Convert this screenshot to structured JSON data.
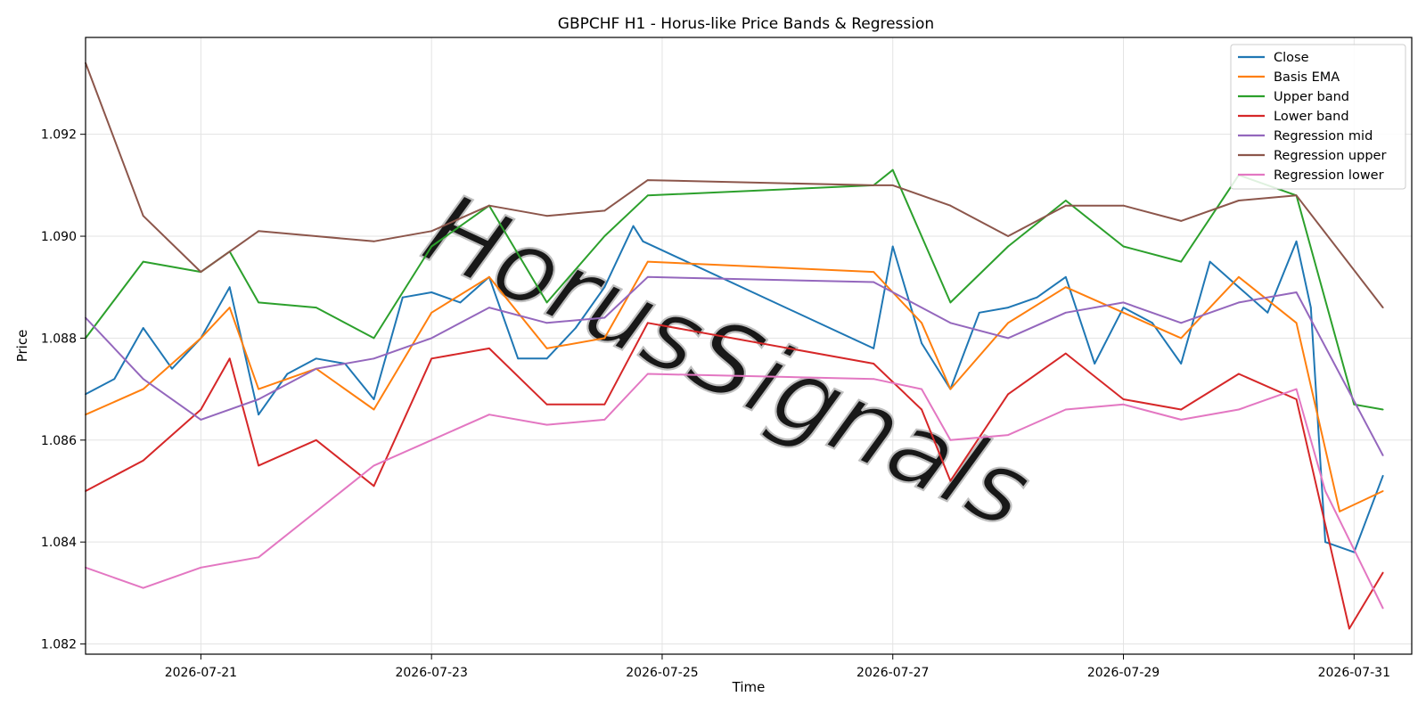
{
  "chart_data": {
    "type": "line",
    "title": "GBPCHF H1 - Horus-like Price Bands & Regression",
    "xlabel": "Time",
    "ylabel": "Price",
    "x_range": [
      "2026-07-20T00:00",
      "2026-07-31T12:00"
    ],
    "ylim": [
      1.0818,
      1.0939
    ],
    "xticks": [
      "2026-07-21",
      "2026-07-23",
      "2026-07-25",
      "2026-07-27",
      "2026-07-29",
      "2026-07-31"
    ],
    "yticks": [
      "1.082",
      "1.084",
      "1.086",
      "1.088",
      "1.090",
      "1.092"
    ],
    "grid": true,
    "legend_position": "top-right",
    "watermark": "HorusSignals",
    "series": [
      {
        "name": "Close",
        "color": "#1f77b4",
        "x": [
          "2026-07-20T00:00",
          "2026-07-20T06:00",
          "2026-07-20T12:00",
          "2026-07-20T18:00",
          "2026-07-21T00:00",
          "2026-07-21T06:00",
          "2026-07-21T12:00",
          "2026-07-21T18:00",
          "2026-07-22T00:00",
          "2026-07-22T06:00",
          "2026-07-22T12:00",
          "2026-07-22T18:00",
          "2026-07-23T00:00",
          "2026-07-23T06:00",
          "2026-07-23T12:00",
          "2026-07-23T18:00",
          "2026-07-24T00:00",
          "2026-07-24T06:00",
          "2026-07-24T12:00",
          "2026-07-24T18:00",
          "2026-07-24T20:00",
          "2026-07-26T20:00",
          "2026-07-27T00:00",
          "2026-07-27T06:00",
          "2026-07-27T12:00",
          "2026-07-27T18:00",
          "2026-07-28T00:00",
          "2026-07-28T06:00",
          "2026-07-28T12:00",
          "2026-07-28T18:00",
          "2026-07-29T00:00",
          "2026-07-29T06:00",
          "2026-07-29T12:00",
          "2026-07-29T18:00",
          "2026-07-30T00:00",
          "2026-07-30T06:00",
          "2026-07-30T12:00",
          "2026-07-30T15:00",
          "2026-07-30T18:00",
          "2026-07-31T00:00",
          "2026-07-31T06:00"
        ],
        "y": [
          1.0869,
          1.0872,
          1.0882,
          1.0874,
          1.088,
          1.089,
          1.0865,
          1.0873,
          1.0876,
          1.0875,
          1.0868,
          1.0888,
          1.0889,
          1.0887,
          1.0892,
          1.0876,
          1.0876,
          1.0882,
          1.089,
          1.0902,
          1.0899,
          1.0878,
          1.0898,
          1.0879,
          1.087,
          1.0885,
          1.0886,
          1.0888,
          1.0892,
          1.0875,
          1.0886,
          1.0883,
          1.0875,
          1.0895,
          1.089,
          1.0885,
          1.0899,
          1.0886,
          1.084,
          1.0838,
          1.0853
        ]
      },
      {
        "name": "Basis EMA",
        "color": "#ff7f0e",
        "x": [
          "2026-07-20T00:00",
          "2026-07-20T12:00",
          "2026-07-21T00:00",
          "2026-07-21T06:00",
          "2026-07-21T12:00",
          "2026-07-22T00:00",
          "2026-07-22T12:00",
          "2026-07-23T00:00",
          "2026-07-23T12:00",
          "2026-07-24T00:00",
          "2026-07-24T12:00",
          "2026-07-24T21:00",
          "2026-07-26T20:00",
          "2026-07-27T06:00",
          "2026-07-27T12:00",
          "2026-07-28T00:00",
          "2026-07-28T12:00",
          "2026-07-29T00:00",
          "2026-07-29T12:00",
          "2026-07-30T00:00",
          "2026-07-30T12:00",
          "2026-07-30T21:00",
          "2026-07-31T06:00"
        ],
        "y": [
          1.0865,
          1.087,
          1.088,
          1.0886,
          1.087,
          1.0874,
          1.0866,
          1.0885,
          1.0892,
          1.0878,
          1.088,
          1.0895,
          1.0893,
          1.0883,
          1.087,
          1.0883,
          1.089,
          1.0885,
          1.088,
          1.0892,
          1.0883,
          1.0846,
          1.085
        ]
      },
      {
        "name": "Upper band",
        "color": "#2ca02c",
        "x": [
          "2026-07-20T00:00",
          "2026-07-20T12:00",
          "2026-07-21T00:00",
          "2026-07-21T06:00",
          "2026-07-21T12:00",
          "2026-07-22T00:00",
          "2026-07-22T12:00",
          "2026-07-23T00:00",
          "2026-07-23T12:00",
          "2026-07-24T00:00",
          "2026-07-24T12:00",
          "2026-07-24T21:00",
          "2026-07-26T20:00",
          "2026-07-27T00:00",
          "2026-07-27T12:00",
          "2026-07-28T00:00",
          "2026-07-28T12:00",
          "2026-07-29T00:00",
          "2026-07-29T12:00",
          "2026-07-30T00:00",
          "2026-07-30T12:00",
          "2026-07-31T00:00",
          "2026-07-31T06:00"
        ],
        "y": [
          1.088,
          1.0895,
          1.0893,
          1.0897,
          1.0887,
          1.0886,
          1.088,
          1.0898,
          1.0906,
          1.0887,
          1.09,
          1.0908,
          1.091,
          1.0913,
          1.0887,
          1.0898,
          1.0907,
          1.0898,
          1.0895,
          1.0912,
          1.0908,
          1.0867,
          1.0866
        ]
      },
      {
        "name": "Lower band",
        "color": "#d62728",
        "x": [
          "2026-07-20T00:00",
          "2026-07-20T12:00",
          "2026-07-21T00:00",
          "2026-07-21T06:00",
          "2026-07-21T12:00",
          "2026-07-22T00:00",
          "2026-07-22T12:00",
          "2026-07-23T00:00",
          "2026-07-23T12:00",
          "2026-07-24T00:00",
          "2026-07-24T12:00",
          "2026-07-24T21:00",
          "2026-07-26T20:00",
          "2026-07-27T06:00",
          "2026-07-27T12:00",
          "2026-07-28T00:00",
          "2026-07-28T12:00",
          "2026-07-29T00:00",
          "2026-07-29T12:00",
          "2026-07-30T00:00",
          "2026-07-30T12:00",
          "2026-07-30T23:00",
          "2026-07-31T06:00"
        ],
        "y": [
          1.085,
          1.0856,
          1.0866,
          1.0876,
          1.0855,
          1.086,
          1.0851,
          1.0876,
          1.0878,
          1.0867,
          1.0867,
          1.0883,
          1.0875,
          1.0866,
          1.0852,
          1.0869,
          1.0877,
          1.0868,
          1.0866,
          1.0873,
          1.0868,
          1.0823,
          1.0834
        ]
      },
      {
        "name": "Regression mid",
        "color": "#9467bd",
        "x": [
          "2026-07-20T00:00",
          "2026-07-20T12:00",
          "2026-07-21T00:00",
          "2026-07-21T12:00",
          "2026-07-22T00:00",
          "2026-07-22T12:00",
          "2026-07-23T00:00",
          "2026-07-23T12:00",
          "2026-07-24T00:00",
          "2026-07-24T12:00",
          "2026-07-24T21:00",
          "2026-07-26T20:00",
          "2026-07-27T12:00",
          "2026-07-28T00:00",
          "2026-07-28T12:00",
          "2026-07-29T00:00",
          "2026-07-29T12:00",
          "2026-07-30T00:00",
          "2026-07-30T12:00",
          "2026-07-31T06:00"
        ],
        "y": [
          1.0884,
          1.0872,
          1.0864,
          1.0868,
          1.0874,
          1.0876,
          1.088,
          1.0886,
          1.0883,
          1.0884,
          1.0892,
          1.0891,
          1.0883,
          1.088,
          1.0885,
          1.0887,
          1.0883,
          1.0887,
          1.0889,
          1.0857
        ]
      },
      {
        "name": "Regression upper",
        "color": "#8c564b",
        "x": [
          "2026-07-20T00:00",
          "2026-07-20T12:00",
          "2026-07-21T00:00",
          "2026-07-21T12:00",
          "2026-07-22T00:00",
          "2026-07-22T12:00",
          "2026-07-23T00:00",
          "2026-07-23T12:00",
          "2026-07-24T00:00",
          "2026-07-24T12:00",
          "2026-07-24T21:00",
          "2026-07-26T20:00",
          "2026-07-27T00:00",
          "2026-07-27T12:00",
          "2026-07-28T00:00",
          "2026-07-28T12:00",
          "2026-07-29T00:00",
          "2026-07-29T12:00",
          "2026-07-30T00:00",
          "2026-07-30T12:00",
          "2026-07-31T06:00"
        ],
        "y": [
          1.0934,
          1.0904,
          1.0893,
          1.0901,
          1.09,
          1.0899,
          1.0901,
          1.0906,
          1.0904,
          1.0905,
          1.0911,
          1.091,
          1.091,
          1.0906,
          1.09,
          1.0906,
          1.0906,
          1.0903,
          1.0907,
          1.0908,
          1.0886
        ]
      },
      {
        "name": "Regression lower",
        "color": "#e377c2",
        "x": [
          "2026-07-20T00:00",
          "2026-07-20T12:00",
          "2026-07-21T00:00",
          "2026-07-21T12:00",
          "2026-07-22T00:00",
          "2026-07-22T12:00",
          "2026-07-23T00:00",
          "2026-07-23T12:00",
          "2026-07-24T00:00",
          "2026-07-24T12:00",
          "2026-07-24T21:00",
          "2026-07-26T20:00",
          "2026-07-27T06:00",
          "2026-07-27T12:00",
          "2026-07-28T00:00",
          "2026-07-28T12:00",
          "2026-07-29T00:00",
          "2026-07-29T12:00",
          "2026-07-30T00:00",
          "2026-07-30T12:00",
          "2026-07-30T18:00",
          "2026-07-31T06:00"
        ],
        "y": [
          1.0835,
          1.0831,
          1.0835,
          1.0837,
          1.0846,
          1.0855,
          1.086,
          1.0865,
          1.0863,
          1.0864,
          1.0873,
          1.0872,
          1.087,
          1.086,
          1.0861,
          1.0866,
          1.0867,
          1.0864,
          1.0866,
          1.087,
          1.085,
          1.0827
        ]
      }
    ]
  }
}
